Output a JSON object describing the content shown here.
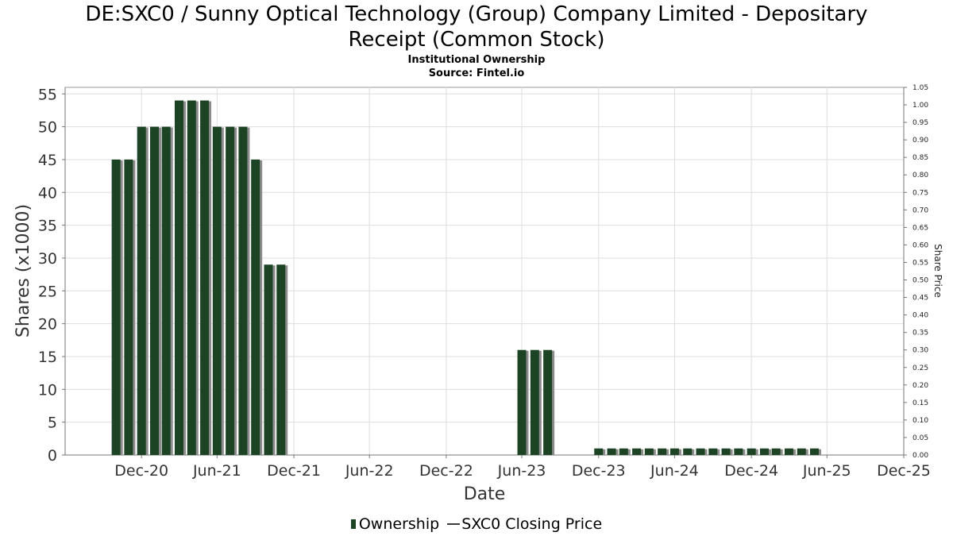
{
  "header": {
    "title_line1": "DE:SXC0 / Sunny Optical Technology (Group) Company Limited - Depositary",
    "title_line2": "Receipt (Common Stock)",
    "subtitle": "Institutional Ownership",
    "source": "Source: Fintel.io"
  },
  "legend": {
    "ownership": "Ownership",
    "price": "SXC0 Closing Price"
  },
  "colors": {
    "bar": "#1c4424",
    "bar_shadow": "#8c8c8c",
    "grid": "#dedede"
  },
  "chart_data": {
    "type": "bar",
    "xlabel": "Date",
    "ylabel": "Shares (x1000)",
    "y2label": "Share Price",
    "ylim": [
      0,
      56
    ],
    "y2lim": [
      0,
      1.05
    ],
    "x_range": [
      "2020-07-01",
      "2025-12-31"
    ],
    "yticks": [
      "0",
      "5",
      "10",
      "15",
      "20",
      "25",
      "30",
      "35",
      "40",
      "45",
      "50",
      "55"
    ],
    "y2ticks": [
      "0.00",
      "0.05",
      "0.10",
      "0.15",
      "0.20",
      "0.25",
      "0.30",
      "0.35",
      "0.40",
      "0.45",
      "0.50",
      "0.55",
      "0.60",
      "0.65",
      "0.70",
      "0.75",
      "0.80",
      "0.85",
      "0.90",
      "0.95",
      "1.00",
      "1.05"
    ],
    "xticks": [
      {
        "label": "Dec-20",
        "date": "2020-12-31"
      },
      {
        "label": "Jun-21",
        "date": "2021-06-30"
      },
      {
        "label": "Dec-21",
        "date": "2021-12-31"
      },
      {
        "label": "Jun-22",
        "date": "2022-06-30"
      },
      {
        "label": "Dec-22",
        "date": "2022-12-31"
      },
      {
        "label": "Jun-23",
        "date": "2023-06-30"
      },
      {
        "label": "Dec-23",
        "date": "2023-12-31"
      },
      {
        "label": "Jun-24",
        "date": "2024-06-30"
      },
      {
        "label": "Dec-24",
        "date": "2024-12-31"
      },
      {
        "label": "Jun-25",
        "date": "2025-06-30"
      },
      {
        "label": "Dec-25",
        "date": "2025-12-31"
      }
    ],
    "series": [
      {
        "name": "Ownership",
        "points": [
          {
            "date": "2020-10-31",
            "value": 45
          },
          {
            "date": "2020-11-30",
            "value": 45
          },
          {
            "date": "2020-12-31",
            "value": 50
          },
          {
            "date": "2021-01-31",
            "value": 50
          },
          {
            "date": "2021-02-28",
            "value": 50
          },
          {
            "date": "2021-03-31",
            "value": 54
          },
          {
            "date": "2021-04-30",
            "value": 54
          },
          {
            "date": "2021-05-31",
            "value": 54
          },
          {
            "date": "2021-06-30",
            "value": 50
          },
          {
            "date": "2021-07-31",
            "value": 50
          },
          {
            "date": "2021-08-31",
            "value": 50
          },
          {
            "date": "2021-09-30",
            "value": 45
          },
          {
            "date": "2021-10-31",
            "value": 29
          },
          {
            "date": "2021-11-30",
            "value": 29
          },
          {
            "date": "2023-06-30",
            "value": 16
          },
          {
            "date": "2023-07-31",
            "value": 16
          },
          {
            "date": "2023-08-31",
            "value": 16
          },
          {
            "date": "2023-12-31",
            "value": 1
          },
          {
            "date": "2024-01-31",
            "value": 1
          },
          {
            "date": "2024-02-29",
            "value": 1
          },
          {
            "date": "2024-03-31",
            "value": 1
          },
          {
            "date": "2024-04-30",
            "value": 1
          },
          {
            "date": "2024-05-31",
            "value": 1
          },
          {
            "date": "2024-06-30",
            "value": 1
          },
          {
            "date": "2024-07-31",
            "value": 1
          },
          {
            "date": "2024-08-31",
            "value": 1
          },
          {
            "date": "2024-09-30",
            "value": 1
          },
          {
            "date": "2024-10-31",
            "value": 1
          },
          {
            "date": "2024-11-30",
            "value": 1
          },
          {
            "date": "2024-12-31",
            "value": 1
          },
          {
            "date": "2025-01-31",
            "value": 1
          },
          {
            "date": "2025-02-28",
            "value": 1
          },
          {
            "date": "2025-03-31",
            "value": 1
          },
          {
            "date": "2025-04-30",
            "value": 1
          },
          {
            "date": "2025-05-31",
            "value": 1
          }
        ]
      },
      {
        "name": "SXC0 Closing Price",
        "points": []
      }
    ]
  }
}
